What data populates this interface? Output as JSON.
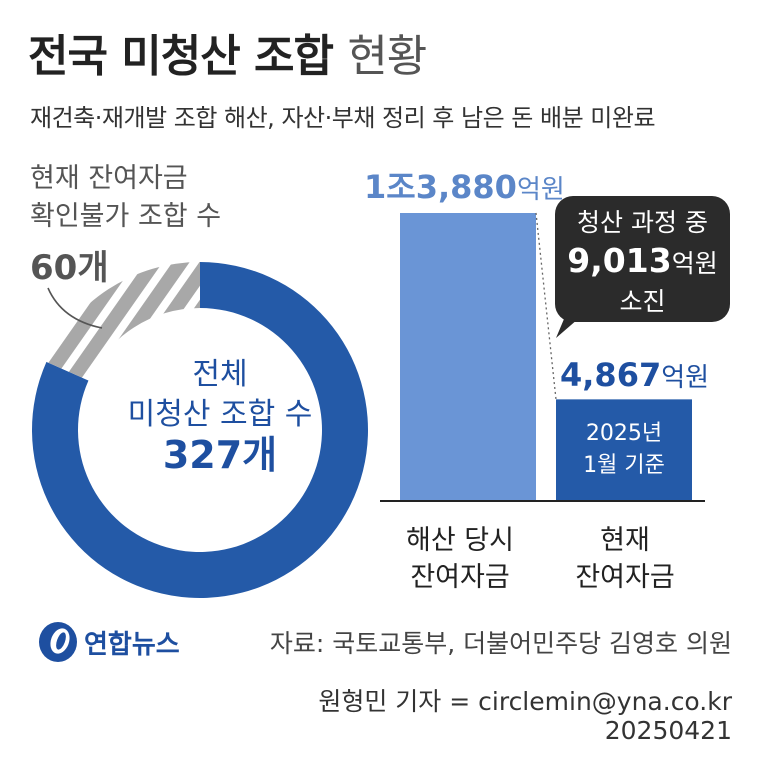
{
  "header": {
    "title_bold": "전국 미청산 조합",
    "title_light": "현황",
    "subtitle": "재건축·재개발 조합 해산, 자산·부채 정리 후 남은 돈 배분 미완료"
  },
  "donut": {
    "unknown_label_line1": "현재 잔여자금",
    "unknown_label_line2": "확인불가 조합 수",
    "unknown_count": "60개",
    "center_line1": "전체",
    "center_line2": "미청산 조합 수",
    "center_value": "327개",
    "total": 327,
    "unknown": 60,
    "colors": {
      "main": "#245aa8",
      "hatch_bg": "#a8a8a8",
      "hatch_stripe": "#ffffff"
    }
  },
  "chart_data": [
    {
      "type": "pie",
      "title": "",
      "labels": [
        "전체 미청산 조합 수",
        "현재 잔여자금 확인불가 조합 수"
      ],
      "values": [
        327,
        60
      ],
      "note": "donut; 60 of 327 shown as hatched segment"
    },
    {
      "type": "bar",
      "title": "",
      "categories": [
        "해산 당시 잔여자금",
        "현재 잔여자금"
      ],
      "values": [
        13880,
        4867
      ],
      "unit": "억원",
      "ylim": [
        0,
        13880
      ],
      "colors": [
        "#6a95d6",
        "#245aa8"
      ]
    }
  ],
  "bars": {
    "bar1_value_num": "1조3,880",
    "bar1_value_unit": "억원",
    "bar2_value_num": "4,867",
    "bar2_value_unit": "억원",
    "bar2_note_line1": "2025년",
    "bar2_note_line2": "1월 기준",
    "cat1_line1": "해산 당시",
    "cat1_line2": "잔여자금",
    "cat2_line1": "현재",
    "cat2_line2": "잔여자금"
  },
  "callout": {
    "line1": "청산 과정 중",
    "line2_num": "9,013",
    "line2_unit": "억원",
    "line3": "소진"
  },
  "footer": {
    "logo_text": "연합뉴스",
    "source": "자료: 국토교통부, 더불어민주당 김영호 의원",
    "byline": "원형민 기자 = circlemin@yna.co.kr",
    "date": "20250421"
  }
}
